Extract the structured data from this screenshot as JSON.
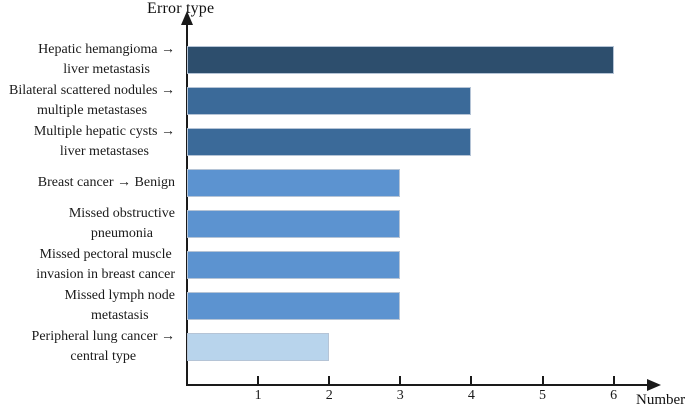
{
  "chart_data": {
    "type": "bar",
    "orientation": "horizontal",
    "title": "",
    "xlabel": "Number",
    "ylabel": "Error type",
    "xlim": [
      0,
      6.6
    ],
    "x_ticks": [
      1,
      2,
      3,
      4,
      5,
      6
    ],
    "grid": false,
    "legend": "none",
    "categories": [
      "Hepatic hemangioma →\nliver metastasis",
      "Bilateral scattered nodules →\nmultiple metastases",
      "Multiple hepatic cysts →\nliver metastases",
      "Breast cancer →  Benign",
      "Missed obstructive\npneumonia",
      "Missed pectoral muscle\ninvasion in breast cancer",
      "Missed lymph node\nmetastasis",
      "Peripheral lung cancer →\ncentral type"
    ],
    "values": [
      6,
      4,
      4,
      3,
      3,
      3,
      3,
      2
    ],
    "bar_colors": [
      "#2d4e6d",
      "#3b6a99",
      "#3b6a99",
      "#5c93d0",
      "#5c93d0",
      "#5c93d0",
      "#5c93d0",
      "#b8d4ec"
    ],
    "axis_color": "#1a1a1a",
    "bar_border_color": "#b5c4d6"
  }
}
